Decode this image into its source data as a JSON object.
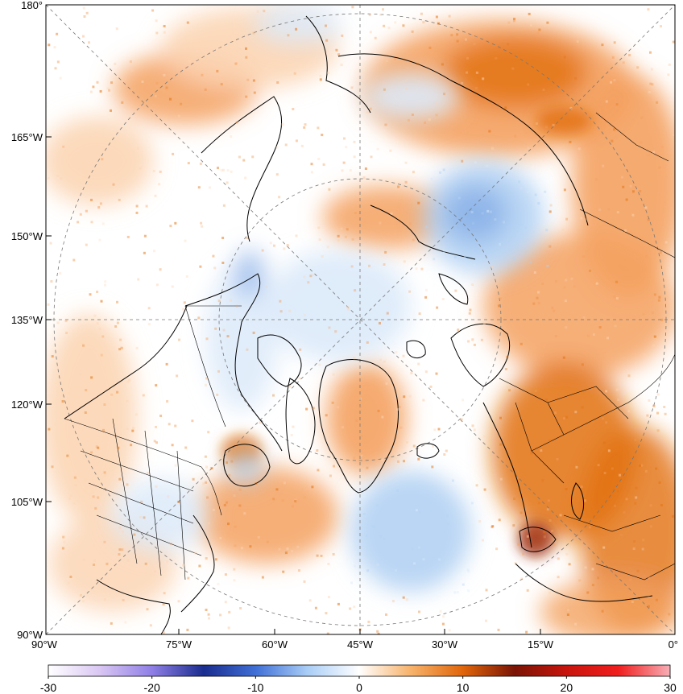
{
  "map": {
    "left_axis_labels": [
      "180°",
      "165°W",
      "150°W",
      "135°W",
      "120°W",
      "105°W",
      "90°W"
    ],
    "bottom_axis_labels": [
      "90°W",
      "75°W",
      "60°W",
      "45°W",
      "30°W",
      "15°W",
      "0°"
    ]
  },
  "colorbar": {
    "tick_labels": [
      "-30",
      "-20",
      "-10",
      "0",
      "10",
      "20",
      "30"
    ],
    "colors": [
      "#ffffff",
      "#d9c6f3",
      "#8f7fe6",
      "#1a2c8f",
      "#3f6fd6",
      "#a9cdf6",
      "#ffffff",
      "#f7b26a",
      "#e0650a",
      "#7a1405",
      "#c8140c",
      "#f01e1e",
      "#f7aeb6"
    ]
  },
  "palette": {
    "warm_light": "#fcd5b4",
    "warm_mid": "#f4a15f",
    "warm_strong": "#e2700e",
    "warm_dark": "#a02e0a",
    "cool_light": "#dceaf9",
    "cool_mid": "#b2d2f3",
    "cool_strong": "#7fa9e6"
  }
}
